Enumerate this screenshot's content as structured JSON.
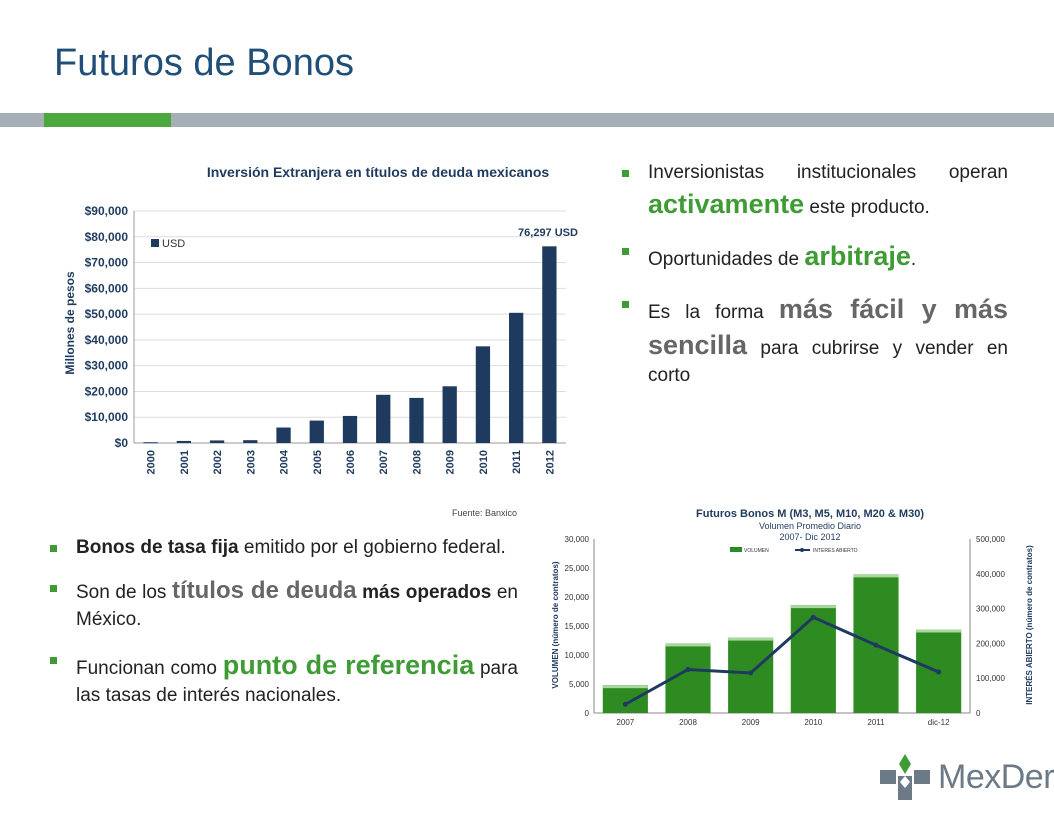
{
  "slide": {
    "title": "Futuros de Bonos",
    "source": "Fuente: Banxico",
    "logo_text": "MexDer"
  },
  "right_bullets": [
    {
      "pre": "Inversionistas institucionales operan ",
      "hl": "activamente",
      "post": " este producto."
    },
    {
      "pre": "Oportunidades de ",
      "hl": "arbitraje",
      "post": "."
    },
    {
      "pre": "Es la forma ",
      "hl": "más fácil y más sencilla",
      "post": " para cubrirse y vender en corto"
    }
  ],
  "left_bullets": [
    {
      "bold": "Bonos de tasa fija",
      "post": " emitido por el gobierno federal."
    },
    {
      "pre": "Son de los ",
      "hl": "títulos de deuda",
      "bold": " más operados",
      "post": " en México."
    },
    {
      "pre": "Funcionan como ",
      "hl": "punto de referencia",
      "post": " para las tasas de interés nacionales."
    }
  ],
  "colors": {
    "title": "#1f4e79",
    "bar_navy": "#1f3a5f",
    "bar_green": "#2e8b22",
    "accent_green": "#3f9c35"
  },
  "chart_data": [
    {
      "type": "bar",
      "title": "Inversión Extranjera en títulos de deuda mexicanos",
      "ylabel": "Millones de pesos",
      "legend": "USD",
      "legend_position": "top-left",
      "categories": [
        "2000",
        "2001",
        "2002",
        "2003",
        "2004",
        "2005",
        "2006",
        "2007",
        "2008",
        "2009",
        "2010",
        "2011",
        "2012"
      ],
      "values": [
        300,
        800,
        1000,
        1100,
        6000,
        8700,
        10500,
        18700,
        17500,
        22000,
        37500,
        50500,
        76297
      ],
      "ylim": [
        0,
        90000
      ],
      "yticks": [
        "$0",
        "$10,000",
        "$20,000",
        "$30,000",
        "$40,000",
        "$50,000",
        "$60,000",
        "$70,000",
        "$80,000",
        "$90,000"
      ],
      "annotation": "76,297 USD",
      "grid": true
    },
    {
      "type": "bar",
      "title": "Futuros Bonos M (M3, M5, M10, M20 & M30)",
      "subtitle": "Volumen Promedio Diario",
      "subtitle2": "2007- Dic 2012",
      "categories": [
        "2007",
        "2008",
        "2009",
        "2010",
        "2011",
        "dic-12"
      ],
      "series": [
        {
          "name": "VOLUMEN",
          "type": "bar",
          "axis": "left",
          "values": [
            4800,
            12000,
            13000,
            18600,
            23900,
            14400
          ]
        },
        {
          "name": "INTERÉS ABIERTO",
          "type": "line",
          "axis": "right",
          "values": [
            25000,
            125000,
            115000,
            275000,
            195000,
            118000
          ]
        }
      ],
      "ylabel_left": "VOLUMEN (número de contratos)",
      "ylabel_right": "INTERÉS ABIERTO (número de contratos)",
      "ylim_left": [
        0,
        30000
      ],
      "ylim_right": [
        0,
        500000
      ],
      "yticks_left": [
        "0",
        "5,000",
        "10,000",
        "15,000",
        "20,000",
        "25,000",
        "30,000"
      ],
      "yticks_right": [
        "0",
        "100,000",
        "200,000",
        "300,000",
        "400,000",
        "500,000"
      ],
      "legend_position": "top"
    }
  ]
}
